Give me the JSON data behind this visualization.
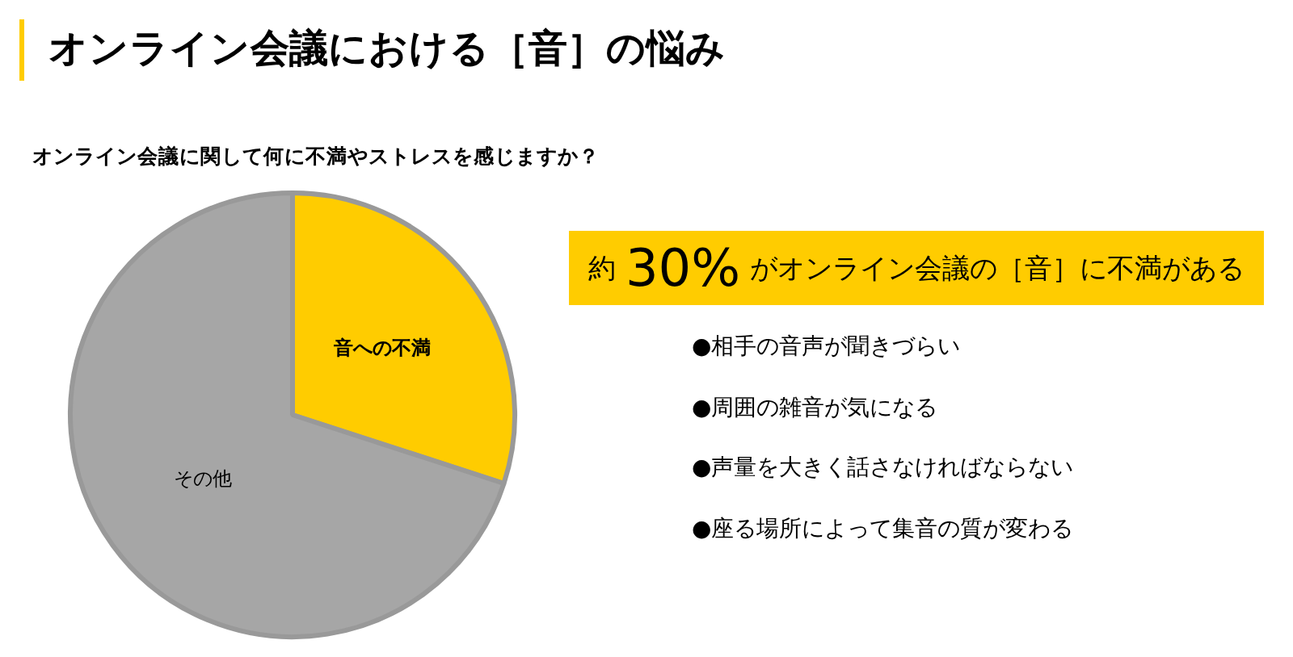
{
  "chart_data": {
    "type": "pie",
    "title": "オンライン会議における［音］の悩み",
    "subtitle": "オンライン会議に関して何に不満やストレスを感じますか？",
    "categories": [
      "音への不満",
      "その他"
    ],
    "values": [
      30,
      70
    ],
    "colors": [
      "#ffcc00",
      "#a6a6a6"
    ],
    "legend": false,
    "annotations": [
      "約 30% がオンライン会議の［音］に不満がある",
      "●相手の音声が聞きづらい",
      "●周囲の雑音が気になる",
      "●声量を大きく話さなければならない",
      "●座る場所によって集音の質が変わる"
    ]
  }
}
